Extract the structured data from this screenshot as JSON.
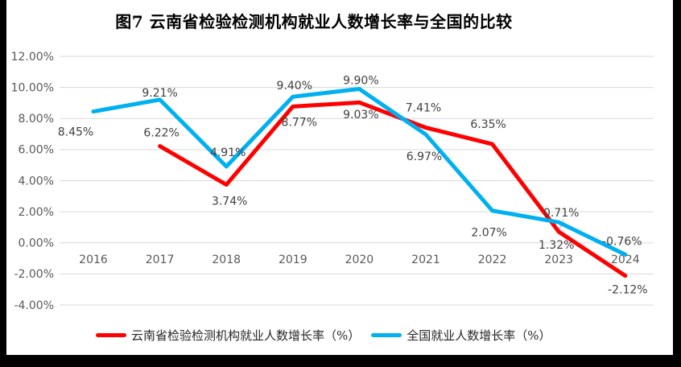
{
  "page": {
    "background_color": "#FFFFFF",
    "bezel_color": "#000000"
  },
  "chart_data": {
    "type": "line",
    "title": "图7  云南省检验检测机构就业人数增长率与全国的比较",
    "categories": [
      "2016",
      "2017",
      "2018",
      "2019",
      "2020",
      "2021",
      "2022",
      "2023",
      "2024"
    ],
    "series": [
      {
        "name": "云南省检验检测机构就业人数增长率（%）",
        "color": "#FF0000",
        "values": [
          null,
          6.22,
          3.74,
          8.77,
          9.03,
          7.41,
          6.35,
          0.71,
          -2.12
        ],
        "labels": [
          "",
          "6.22%",
          "3.74%",
          "8.77%",
          "9.03%",
          "7.41%",
          "6.35%",
          "0.71%",
          "-2.12%"
        ]
      },
      {
        "name": "全国就业人数增长率（%）",
        "color": "#00B0F0",
        "values": [
          8.45,
          9.21,
          4.91,
          9.4,
          9.9,
          6.97,
          2.07,
          1.32,
          -0.76
        ],
        "labels": [
          "8.45%",
          "9.21%",
          "4.91%",
          "9.40%",
          "9.90%",
          "6.97%",
          "2.07%",
          "1.32%",
          "-0.76%"
        ]
      }
    ],
    "xlabel": "",
    "ylabel": "",
    "ylim": [
      -4,
      12
    ],
    "ytick_step": 2,
    "ytick_labels": [
      "12.00%",
      "10.00%",
      "8.00%",
      "6.00%",
      "4.00%",
      "2.00%",
      "0.00%",
      "-2.00%",
      "-4.00%"
    ],
    "grid": true,
    "data_labels_shown": true,
    "legend_position": "bottom",
    "colors": {
      "gridline": "#D9D9D9",
      "axis_text": "#595959",
      "data_label_text": "#404040",
      "leader_line": "#BFBFBF"
    }
  }
}
